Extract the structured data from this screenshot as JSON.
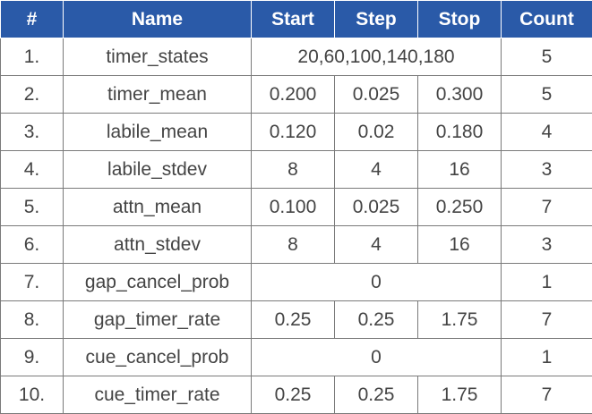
{
  "header": {
    "num": "#",
    "name": "Name",
    "start": "Start",
    "step": "Step",
    "stop": "Stop",
    "count": "Count"
  },
  "rows": [
    {
      "num": "1.",
      "name": "timer_states",
      "merged": "20,60,100,140,180",
      "count": "5"
    },
    {
      "num": "2.",
      "name": "timer_mean",
      "start": "0.200",
      "step": "0.025",
      "stop": "0.300",
      "count": "5"
    },
    {
      "num": "3.",
      "name": "labile_mean",
      "start": "0.120",
      "step": "0.02",
      "stop": "0.180",
      "count": "4"
    },
    {
      "num": "4.",
      "name": "labile_stdev",
      "start": "8",
      "step": "4",
      "stop": "16",
      "count": "3"
    },
    {
      "num": "5.",
      "name": "attn_mean",
      "start": "0.100",
      "step": "0.025",
      "stop": "0.250",
      "count": "7"
    },
    {
      "num": "6.",
      "name": "attn_stdev",
      "start": "8",
      "step": "4",
      "stop": "16",
      "count": "3"
    },
    {
      "num": "7.",
      "name": "gap_cancel_prob",
      "merged": "0",
      "count": "1"
    },
    {
      "num": "8.",
      "name": "gap_timer_rate",
      "start": "0.25",
      "step": "0.25",
      "stop": "1.75",
      "count": "7"
    },
    {
      "num": "9.",
      "name": "cue_cancel_prob",
      "merged": "0",
      "count": "1"
    },
    {
      "num": "10.",
      "name": "cue_timer_rate",
      "start": "0.25",
      "step": "0.25",
      "stop": "1.75",
      "count": "7"
    }
  ],
  "colors": {
    "header_bg": "#2a5aa8",
    "header_text": "#ffffff",
    "cell_text": "#444444",
    "border": "#7a7a7a"
  }
}
